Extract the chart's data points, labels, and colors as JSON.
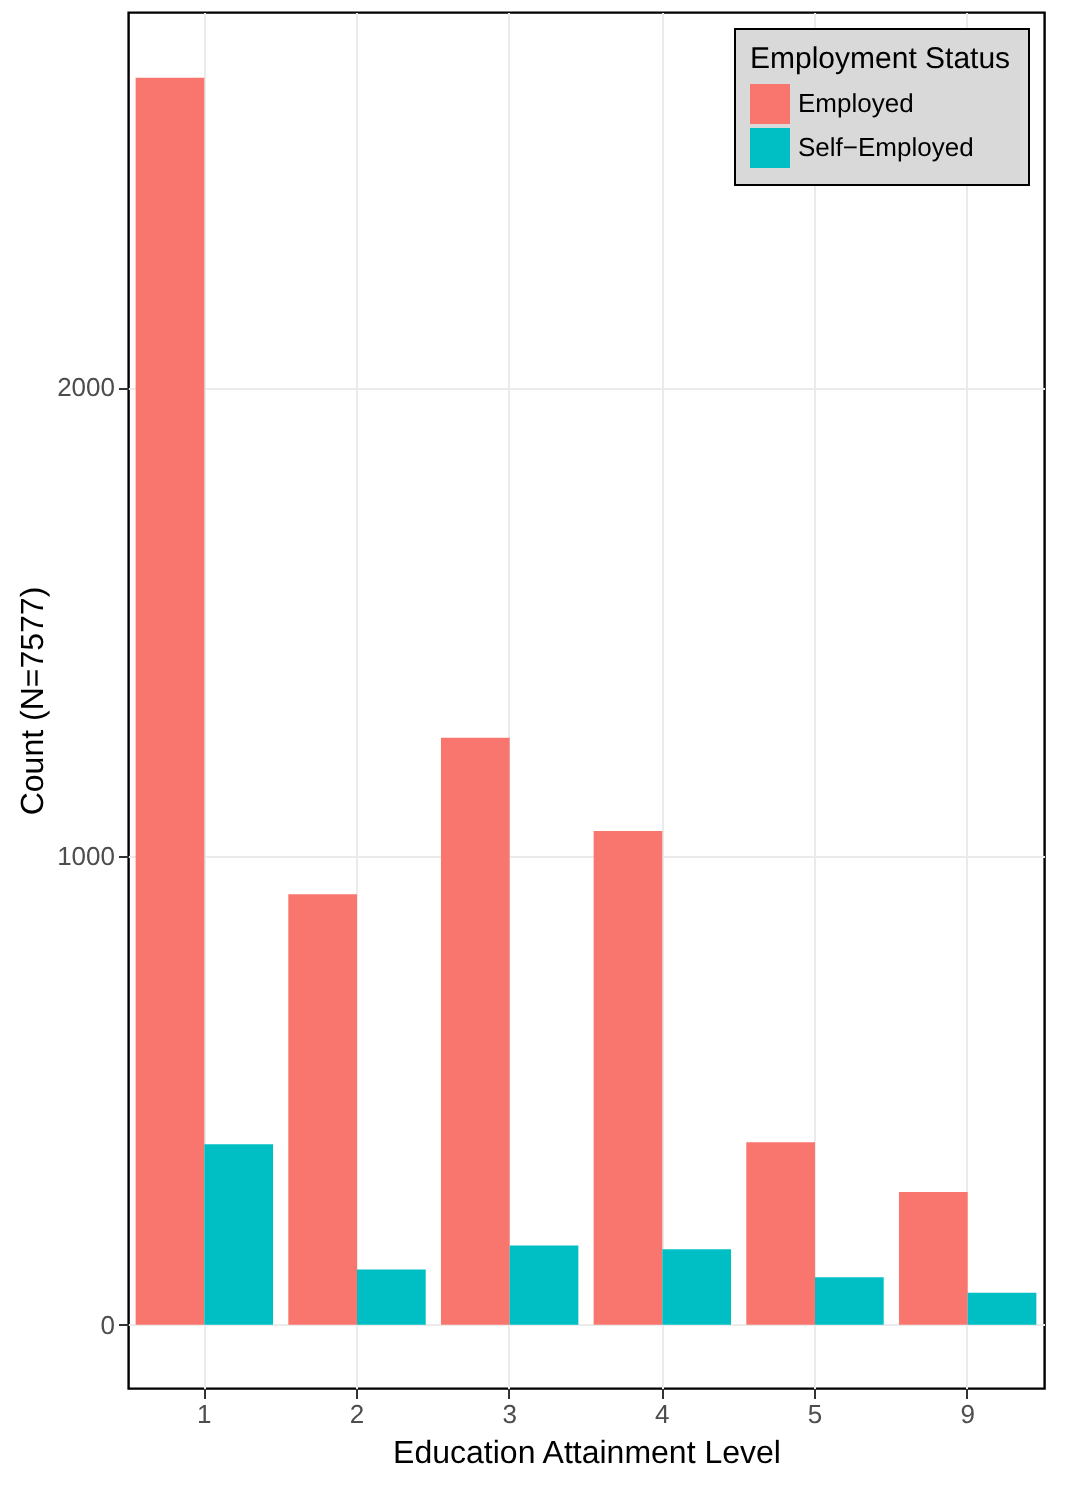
{
  "chart_data": {
    "type": "bar",
    "xlabel": "Education Attainment Level",
    "ylabel": "Count (N=7577)",
    "legend_title": "Employment Status",
    "categories": [
      "1",
      "2",
      "3",
      "4",
      "5",
      "9"
    ],
    "series": [
      {
        "name": "Employed",
        "color": "#f8766d",
        "values": [
          2660,
          918,
          1252,
          1053,
          389,
          283
        ]
      },
      {
        "name": "Self−Employed",
        "color": "#00bfc4",
        "values": [
          385,
          118,
          169,
          161,
          101,
          68
        ]
      }
    ],
    "ylim": [
      -135,
      2800
    ],
    "yticks": [
      0,
      1000,
      2000
    ],
    "grid": true,
    "legend": "top right"
  }
}
